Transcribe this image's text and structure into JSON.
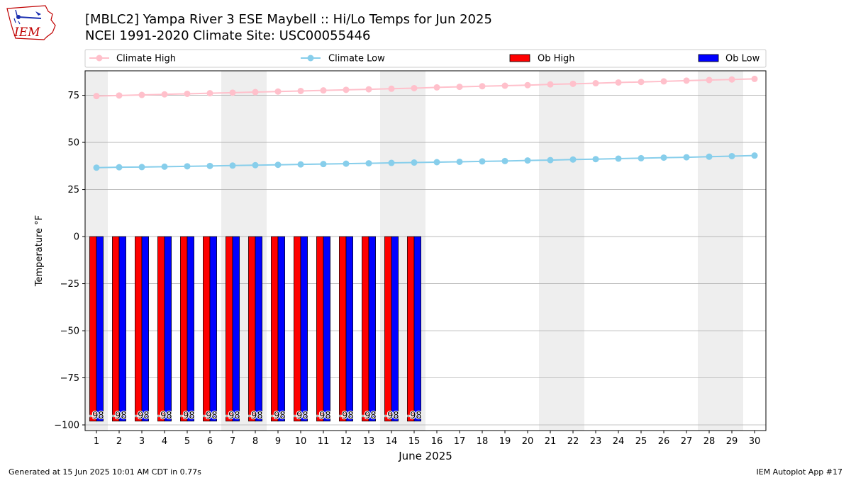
{
  "header": {
    "title_line1": "[MBLC2] Yampa River 3 ESE Maybell :: Hi/Lo Temps for Jun 2025",
    "title_line2": "NCEI 1991-2020 Climate Site: USC00055446",
    "logo_text": "IEM"
  },
  "footer": {
    "generated": "Generated at 15 Jun 2025 10:01 AM CDT in 0.77s",
    "app": "IEM Autoplot App #17"
  },
  "colors": {
    "climate_high": "#ffc0cb",
    "climate_low": "#87ceeb",
    "ob_high": "#ff0000",
    "ob_low": "#0000ff",
    "weekend_shade": "#eeeeee",
    "grid": "#b0b0b0"
  },
  "chart_data": {
    "type": "bar",
    "xlabel": "June 2025",
    "ylabel": "Temperature °F",
    "xlim": [
      0.5,
      30.5
    ],
    "ylim": [
      -103,
      88
    ],
    "yticks": [
      -100,
      -75,
      -50,
      -25,
      0,
      25,
      50,
      75
    ],
    "x": [
      1,
      2,
      3,
      4,
      5,
      6,
      7,
      8,
      9,
      10,
      11,
      12,
      13,
      14,
      15,
      16,
      17,
      18,
      19,
      20,
      21,
      22,
      23,
      24,
      25,
      26,
      27,
      28,
      29,
      30
    ],
    "weekend_spans": [
      [
        0.5,
        1.5
      ],
      [
        6.5,
        8.5
      ],
      [
        13.5,
        15.5
      ],
      [
        20.5,
        22.5
      ],
      [
        27.5,
        29.5
      ]
    ],
    "grid": true,
    "legend": "top, horizontal",
    "series": [
      {
        "name": "Climate High",
        "kind": "line",
        "values": [
          74.6,
          74.9,
          75.2,
          75.5,
          75.8,
          76.1,
          76.4,
          76.7,
          77.0,
          77.3,
          77.6,
          77.9,
          78.2,
          78.5,
          78.8,
          79.2,
          79.5,
          79.8,
          80.1,
          80.4,
          80.8,
          81.1,
          81.4,
          81.8,
          82.1,
          82.4,
          82.8,
          83.1,
          83.4,
          83.7
        ]
      },
      {
        "name": "Climate Low",
        "kind": "line",
        "values": [
          36.6,
          36.8,
          36.9,
          37.1,
          37.3,
          37.5,
          37.7,
          37.9,
          38.1,
          38.3,
          38.5,
          38.7,
          38.9,
          39.1,
          39.3,
          39.5,
          39.7,
          39.9,
          40.1,
          40.4,
          40.6,
          40.9,
          41.1,
          41.4,
          41.6,
          41.9,
          42.1,
          42.4,
          42.7,
          43.0
        ]
      },
      {
        "name": "Ob High",
        "kind": "bar",
        "values": [
          -98,
          -98,
          -98,
          -98,
          -98,
          -98,
          -98,
          -98,
          -98,
          -98,
          -98,
          -98,
          -98,
          -98,
          -98,
          null,
          null,
          null,
          null,
          null,
          null,
          null,
          null,
          null,
          null,
          null,
          null,
          null,
          null,
          null
        ]
      },
      {
        "name": "Ob Low",
        "kind": "bar",
        "values": [
          -98,
          -98,
          -98,
          -98,
          -98,
          -98,
          -98,
          -98,
          -98,
          -98,
          -98,
          -98,
          -98,
          -98,
          -98,
          null,
          null,
          null,
          null,
          null,
          null,
          null,
          null,
          null,
          null,
          null,
          null,
          null,
          null,
          null
        ]
      }
    ],
    "data_labels": [
      "-98",
      "-98",
      "-98",
      "-98",
      "-98",
      "-98",
      "-98",
      "-98",
      "-98",
      "-98",
      "-98",
      "-98",
      "-98",
      "-98",
      "-98"
    ]
  }
}
